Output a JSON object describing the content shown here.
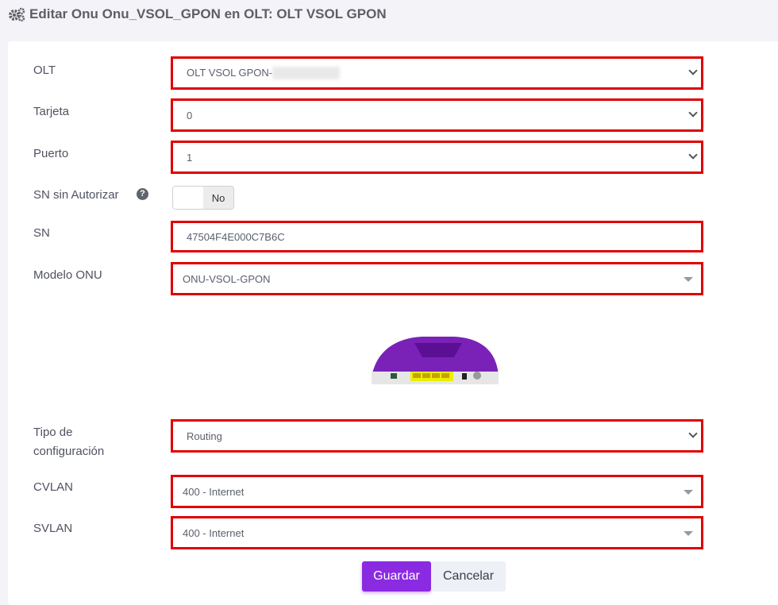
{
  "header": {
    "title": "Editar Onu Onu_VSOL_GPON en OLT: OLT VSOL GPON",
    "icon": "gears-icon"
  },
  "form": {
    "olt": {
      "label": "OLT",
      "value": "OLT VSOL GPON-"
    },
    "tarjeta": {
      "label": "Tarjeta",
      "value": "0"
    },
    "puerto": {
      "label": "Puerto",
      "value": "1"
    },
    "sn_unauth": {
      "label": "SN sin Autorizar",
      "help": "?",
      "toggle": "No"
    },
    "sn": {
      "label": "SN",
      "value": "47504F4E000C7B6C"
    },
    "modelo": {
      "label": "Modelo ONU",
      "value": "ONU-VSOL-GPON"
    },
    "tipo": {
      "label_1": "Tipo de",
      "label_2": "configuración",
      "value": "Routing"
    },
    "cvlan": {
      "label": "CVLAN",
      "value": "400 - Internet"
    },
    "svlan": {
      "label": "SVLAN",
      "value": "400 - Internet"
    }
  },
  "actions": {
    "save": "Guardar",
    "cancel": "Cancelar"
  },
  "colors": {
    "highlight": "#e00000",
    "primary": "#8a2be2"
  }
}
